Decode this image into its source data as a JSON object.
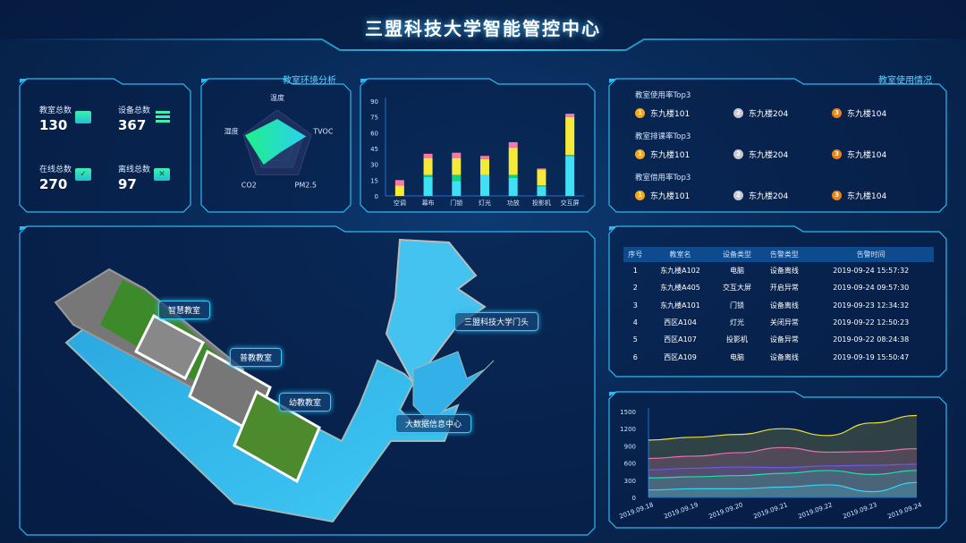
{
  "header": {
    "title": "三盟科技大学智能管控中心"
  },
  "stats": [
    {
      "label": "教室总数",
      "value": "130",
      "icon": "classroom-screen-icon"
    },
    {
      "label": "设备总数",
      "value": "367",
      "icon": "device-list-icon"
    },
    {
      "label": "在线总数",
      "value": "270",
      "icon": "monitor-check-icon"
    },
    {
      "label": "离线总数",
      "value": "97",
      "icon": "monitor-x-icon"
    }
  ],
  "environment": {
    "title": "教室环境分析",
    "chart_data": {
      "type": "radar",
      "axes": [
        "温度",
        "TVOC",
        "PM2.5",
        "CO2",
        "湿度"
      ],
      "values": [
        0.75,
        0.85,
        0.2,
        0.65,
        0.95
      ],
      "max": 1
    }
  },
  "devices_chart": {
    "chart_data": {
      "type": "bar",
      "stacked": true,
      "categories": [
        "空调",
        "幕布",
        "门锁",
        "灯光",
        "功放",
        "投影机",
        "交互屏"
      ],
      "series": [
        {
          "color": "#3fe0f5",
          "values": [
            0,
            18,
            14,
            20,
            17,
            9,
            38
          ]
        },
        {
          "color": "#14d37e",
          "values": [
            0,
            2,
            6,
            0,
            3,
            1,
            1
          ]
        },
        {
          "color": "#f5e93a",
          "values": [
            10,
            16,
            16,
            15,
            26,
            15,
            36
          ]
        },
        {
          "color": "#ff77a8",
          "values": [
            5,
            4,
            5,
            3,
            5,
            1,
            3
          ]
        }
      ],
      "ylim": [
        0,
        90
      ],
      "yticks": [
        0,
        15,
        30,
        45,
        60,
        75,
        90
      ]
    }
  },
  "usage": {
    "title": "教室使用情况",
    "groups": [
      {
        "title": "教室使用率Top3",
        "items": [
          "东九楼101",
          "东九楼204",
          "东九楼104"
        ]
      },
      {
        "title": "教室排课率Top3",
        "items": [
          "东九楼101",
          "东九楼204",
          "东九楼104"
        ]
      },
      {
        "title": "教室借用率Top3",
        "items": [
          "东九楼101",
          "东九楼204",
          "东九楼104"
        ]
      }
    ],
    "medals": [
      {
        "n": "1",
        "color": "#f5a623"
      },
      {
        "n": "2",
        "color": "#c8c8d2"
      },
      {
        "n": "3",
        "color": "#e8821a"
      }
    ]
  },
  "map": {
    "labels": [
      "智慧教室",
      "普教教室",
      "幼教教室",
      "三盟科技大学门头",
      "大数据信息中心"
    ]
  },
  "alarms": {
    "columns": [
      "序号",
      "教室名",
      "设备类型",
      "告警类型",
      "告警时间"
    ],
    "rows": [
      [
        "1",
        "东九楼A102",
        "电脑",
        "设备离线",
        "2019-09-24  15:57:32"
      ],
      [
        "2",
        "东九楼A405",
        "交互大屏",
        "开启异常",
        "2019-09-24  09:57:30"
      ],
      [
        "3",
        "东九楼A101",
        "门锁",
        "设备离线",
        "2019-09-23  12:34:32"
      ],
      [
        "4",
        "西区A104",
        "灯光",
        "关闭异常",
        "2019-09-22  12:50:23"
      ],
      [
        "5",
        "西区A107",
        "投影机",
        "设备异常",
        "2019-09-22  08:24:38"
      ],
      [
        "6",
        "西区A109",
        "电脑",
        "设备离线",
        "2019-09-19  15:50:47"
      ]
    ]
  },
  "trend": {
    "chart_data": {
      "type": "area",
      "x": [
        "2019.09.18",
        "2019.09.19",
        "2019.09.20",
        "2019.09.21",
        "2019.09.22",
        "2019.09.23",
        "2019.09.24"
      ],
      "series": [
        {
          "color": "#e8e03a",
          "values": [
            1000,
            1050,
            1100,
            1200,
            1080,
            1300,
            1430
          ]
        },
        {
          "color": "#e86fb0",
          "values": [
            680,
            720,
            780,
            870,
            790,
            800,
            850
          ]
        },
        {
          "color": "#6a5ae8",
          "values": [
            480,
            510,
            530,
            520,
            550,
            560,
            580
          ]
        },
        {
          "color": "#1fe0a8",
          "values": [
            340,
            360,
            380,
            420,
            470,
            400,
            470
          ]
        },
        {
          "color": "#3fd0f0",
          "values": [
            130,
            150,
            150,
            180,
            220,
            100,
            260
          ]
        }
      ],
      "ylim": [
        0,
        1500
      ],
      "yticks": [
        0,
        300,
        600,
        900,
        1200,
        1500
      ]
    }
  }
}
